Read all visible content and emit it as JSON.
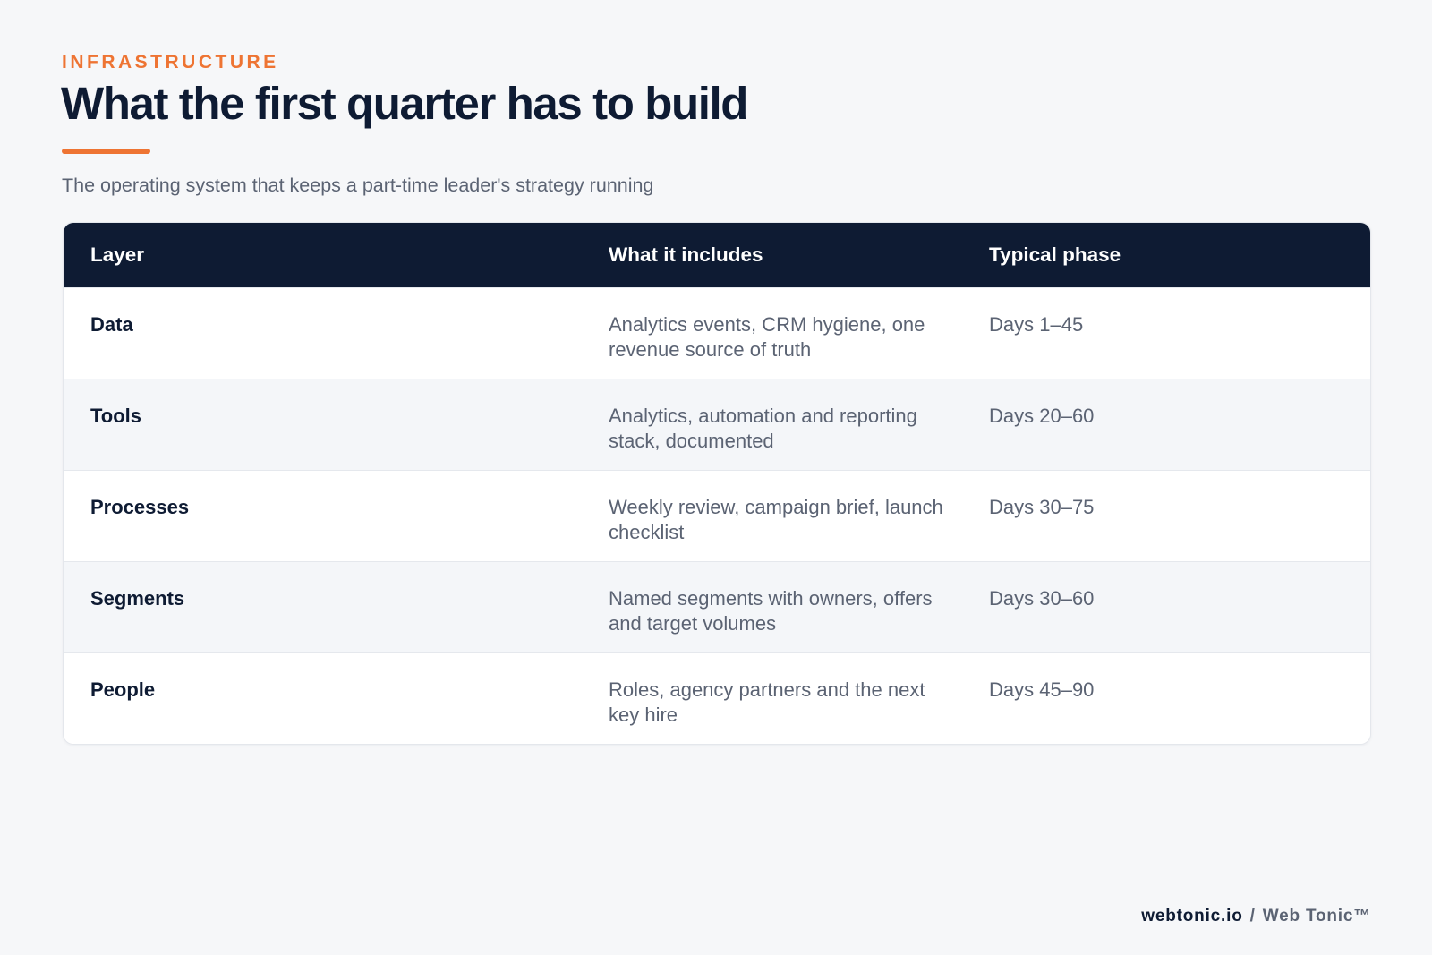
{
  "header": {
    "eyebrow": "INFRASTRUCTURE",
    "title": "What the first quarter has to build",
    "subtitle": "The operating system that keeps a part-time leader's strategy running"
  },
  "table": {
    "columns": [
      "Layer",
      "What it includes",
      "Typical phase"
    ],
    "rows": [
      {
        "layer": "Data",
        "includes": "Analytics events, CRM hygiene, one revenue source of truth",
        "phase": "Days 1–45"
      },
      {
        "layer": "Tools",
        "includes": "Analytics, automation and reporting stack, documented",
        "phase": "Days 20–60"
      },
      {
        "layer": "Processes",
        "includes": "Weekly review, campaign brief, launch checklist",
        "phase": "Days 30–75"
      },
      {
        "layer": "Segments",
        "includes": "Named segments with owners, offers and target volumes",
        "phase": "Days 30–60"
      },
      {
        "layer": "People",
        "includes": "Roles, agency partners and the next key hire",
        "phase": "Days 45–90"
      }
    ]
  },
  "footer": {
    "site": "webtonic.io",
    "separator": "/",
    "brand": "Web Tonic™"
  },
  "colors": {
    "accent": "#ee7433",
    "navy": "#0e1b33",
    "muted_text": "#5b6373",
    "background": "#f6f7f9"
  }
}
